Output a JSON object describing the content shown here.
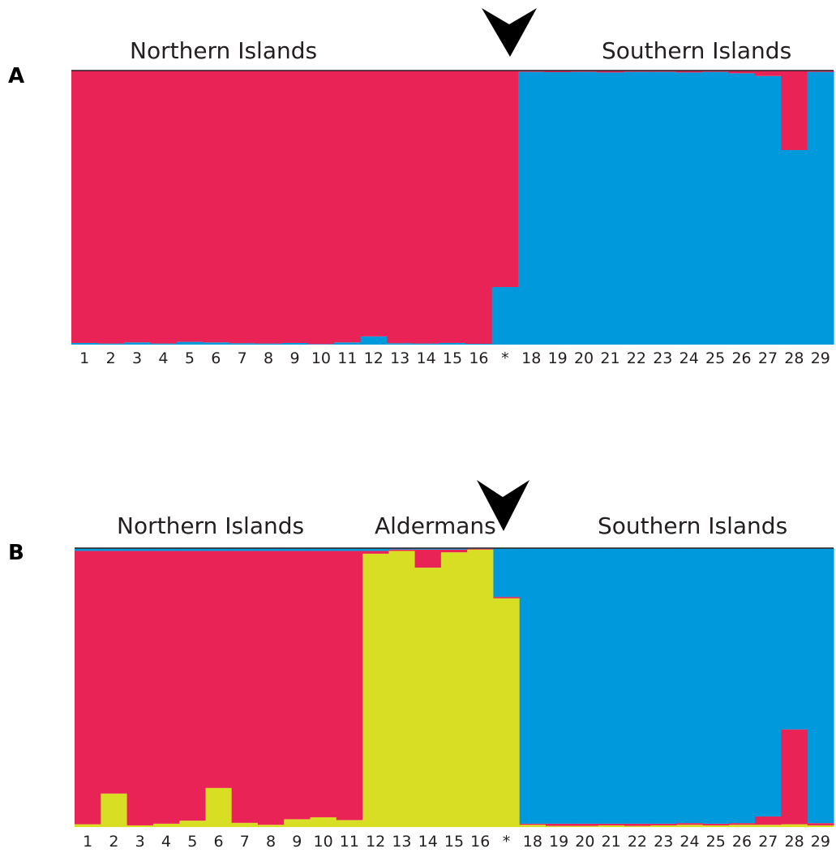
{
  "colors": {
    "red": "#ea2356",
    "blue": "#0099db",
    "yellow": "#d8de24",
    "arrow": "#000000"
  },
  "chart_data": [
    {
      "panel": "A",
      "type": "bar",
      "stacked": true,
      "ylim": [
        0,
        1
      ],
      "group_labels": [
        "Northern Islands",
        "Southern Islands"
      ],
      "categories": [
        "1",
        "2",
        "3",
        "4",
        "5",
        "6",
        "7",
        "8",
        "9",
        "10",
        "11",
        "12",
        "13",
        "14",
        "15",
        "16",
        "*",
        "18",
        "19",
        "20",
        "21",
        "22",
        "23",
        "24",
        "25",
        "26",
        "27",
        "28",
        "29"
      ],
      "series": [
        {
          "color": "blue",
          "values": [
            0.006,
            0.004,
            0.008,
            0.004,
            0.01,
            0.008,
            0.005,
            0.004,
            0.006,
            0.002,
            0.008,
            0.03,
            0.005,
            0.004,
            0.006,
            0.003,
            0.21,
            0.995,
            0.994,
            0.995,
            0.993,
            0.995,
            0.995,
            0.993,
            0.995,
            0.99,
            0.98,
            0.71,
            0.995
          ]
        },
        {
          "color": "red",
          "values": [
            0.994,
            0.996,
            0.992,
            0.996,
            0.99,
            0.992,
            0.995,
            0.996,
            0.994,
            0.998,
            0.992,
            0.97,
            0.995,
            0.996,
            0.994,
            0.997,
            0.79,
            0.005,
            0.006,
            0.005,
            0.007,
            0.005,
            0.005,
            0.007,
            0.005,
            0.01,
            0.02,
            0.29,
            0.005
          ]
        }
      ]
    },
    {
      "panel": "B",
      "type": "bar",
      "stacked": true,
      "ylim": [
        0,
        1
      ],
      "group_labels": [
        "Northern Islands",
        "Aldermans",
        "Southern Islands"
      ],
      "categories": [
        "1",
        "2",
        "3",
        "4",
        "5",
        "6",
        "7",
        "8",
        "9",
        "10",
        "11",
        "12",
        "13",
        "14",
        "15",
        "16",
        "*",
        "18",
        "19",
        "20",
        "21",
        "22",
        "23",
        "24",
        "25",
        "26",
        "27",
        "28",
        "29"
      ],
      "series": [
        {
          "color": "yellow",
          "values": [
            0.01,
            0.12,
            0.006,
            0.012,
            0.023,
            0.14,
            0.015,
            0.008,
            0.028,
            0.035,
            0.025,
            0.98,
            0.99,
            0.93,
            0.985,
            0.995,
            0.82,
            0.008,
            0.004,
            0.004,
            0.006,
            0.004,
            0.006,
            0.008,
            0.006,
            0.008,
            0.008,
            0.01,
            0.006
          ]
        },
        {
          "color": "red",
          "values": [
            0.98,
            0.87,
            0.984,
            0.978,
            0.967,
            0.85,
            0.975,
            0.982,
            0.962,
            0.955,
            0.965,
            0.01,
            0.005,
            0.065,
            0.01,
            0.003,
            0.005,
            0.004,
            0.008,
            0.008,
            0.006,
            0.008,
            0.006,
            0.006,
            0.006,
            0.006,
            0.03,
            0.34,
            0.008
          ]
        },
        {
          "color": "blue",
          "values": [
            0.01,
            0.01,
            0.01,
            0.01,
            0.01,
            0.01,
            0.01,
            0.01,
            0.01,
            0.01,
            0.01,
            0.01,
            0.005,
            0.005,
            0.005,
            0.002,
            0.175,
            0.988,
            0.988,
            0.988,
            0.988,
            0.988,
            0.988,
            0.986,
            0.988,
            0.986,
            0.962,
            0.65,
            0.986
          ]
        }
      ]
    }
  ]
}
